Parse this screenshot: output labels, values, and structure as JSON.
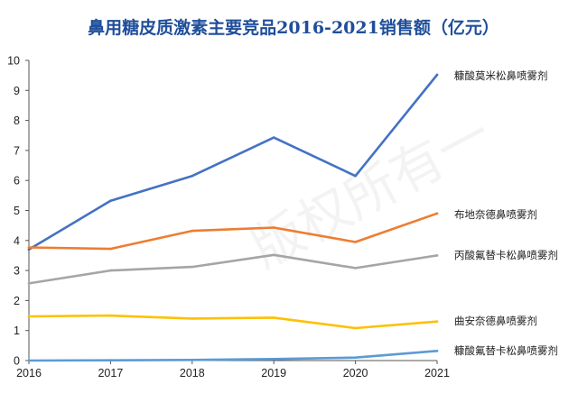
{
  "chart_data": {
    "type": "line",
    "title": "鼻用糖皮质激素主要竞品2016-2021销售额（亿元）",
    "categories": [
      "2016",
      "2017",
      "2018",
      "2019",
      "2020",
      "2021"
    ],
    "ylim": [
      0,
      10
    ],
    "yticks": [
      0,
      1,
      2,
      3,
      4,
      5,
      6,
      7,
      8,
      9,
      10
    ],
    "grid": false,
    "legend": "right",
    "series": [
      {
        "name": "糠酸莫米松鼻喷雾剂",
        "color": "#4472c4",
        "values": [
          3.7,
          5.32,
          6.15,
          7.43,
          6.15,
          9.52
        ]
      },
      {
        "name": "布地奈德鼻喷雾剂",
        "color": "#ed7d31",
        "values": [
          3.77,
          3.72,
          4.32,
          4.43,
          3.95,
          4.9
        ]
      },
      {
        "name": "丙酸氟替卡松鼻喷雾剂",
        "color": "#a5a5a5",
        "values": [
          2.57,
          3.0,
          3.12,
          3.52,
          3.08,
          3.5
        ]
      },
      {
        "name": "曲安奈德鼻喷雾剂",
        "color": "#ffc000",
        "values": [
          1.47,
          1.5,
          1.4,
          1.43,
          1.08,
          1.3
        ]
      },
      {
        "name": "糠酸氟替卡松鼻喷雾剂",
        "color": "#5b9bd5",
        "values": [
          0.0,
          0.01,
          0.02,
          0.05,
          0.1,
          0.32
        ]
      }
    ],
    "watermark": "版权所有一"
  }
}
